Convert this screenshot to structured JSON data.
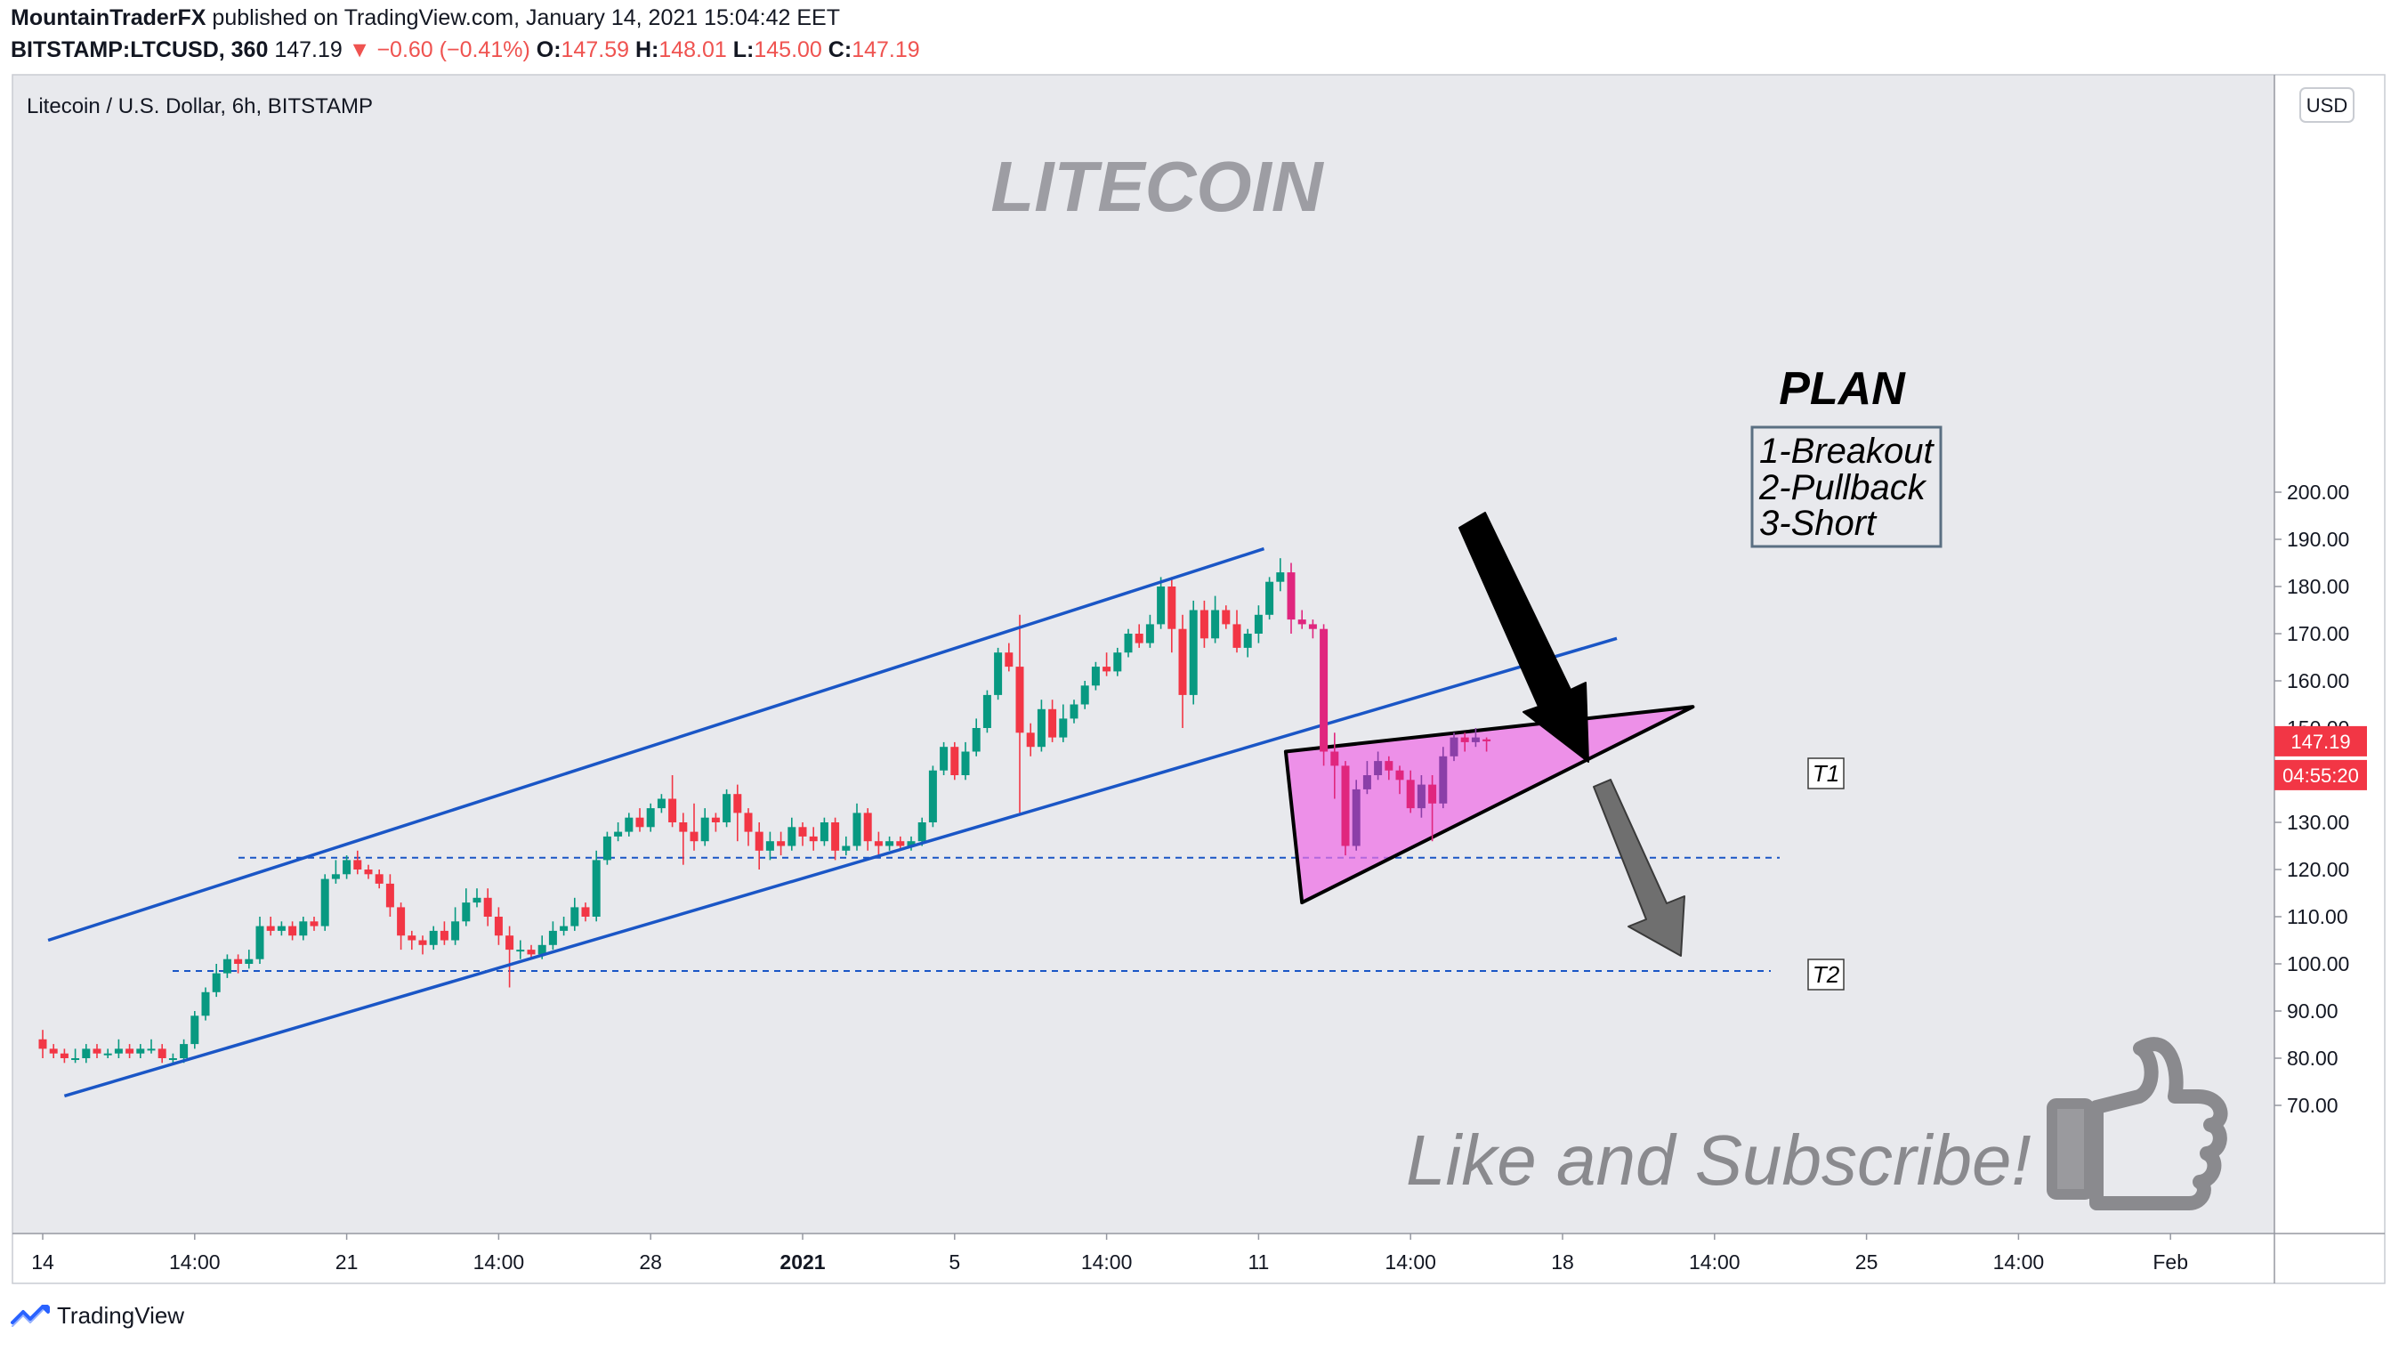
{
  "header": {
    "author": "MountainTraderFX",
    "published": "published on TradingView.com, January 14, 2021 15:04:42 EET",
    "symbol": "BITSTAMP:LTCUSD, 360",
    "last": "147.19",
    "change": "−0.60 (−0.41%)",
    "o_label": "O:",
    "o": "147.59",
    "h_label": "H:",
    "h": "148.01",
    "l_label": "L:",
    "l": "145.00",
    "c_label": "C:",
    "c": "147.19"
  },
  "chart_title": "Litecoin / U.S. Dollar, 6h, BITSTAMP",
  "currency_button": "USD",
  "price_label": "147.19",
  "countdown_label": "04:55:20",
  "colors": {
    "up": "#089981",
    "down": "#f23645",
    "channel": "#1a56c6",
    "triangle_fill": "#ee6ee6",
    "grid_bg": "#e8e9ed"
  },
  "annotations": {
    "watermark": "LITECOIN",
    "plan_title": "PLAN",
    "plan_steps": [
      "1-Breakout",
      "2-Pullback",
      "3-Short"
    ],
    "t1": "T1",
    "t2": "T2",
    "cta": "Like and Subscribe!",
    "cta_icon": "thumbs-up-icon"
  },
  "footer": {
    "brand": "TradingView",
    "logo_icon": "tradingview-logo-icon"
  },
  "chart_data": {
    "type": "candlestick",
    "title": "Litecoin / U.S. Dollar, 6h, BITSTAMP",
    "xlabel": "",
    "ylabel": "USD",
    "ylim": [
      64,
      206
    ],
    "y_ticks": [
      "200.00",
      "190.00",
      "180.00",
      "170.00",
      "160.00",
      "150.00",
      "140.00",
      "130.00",
      "120.00",
      "110.00",
      "100.00",
      "90.00",
      "80.00",
      "70.00"
    ],
    "x_ticks": [
      "14",
      "14:00",
      "21",
      "14:00",
      "28",
      "2021",
      "5",
      "14:00",
      "11",
      "14:00",
      "18",
      "14:00",
      "25",
      "14:00",
      "Feb"
    ],
    "x_tick_index": [
      0,
      14,
      28,
      42,
      56,
      70,
      84,
      98,
      112,
      126,
      140,
      154,
      168,
      182,
      196
    ],
    "horizontal_levels": [
      {
        "label": "T1",
        "value": 122.5
      },
      {
        "label": "T2",
        "value": 98.5
      }
    ],
    "channel_lines": [
      {
        "from": [
          0.5,
          105
        ],
        "to": [
          112.5,
          188
        ]
      },
      {
        "from": [
          2,
          72
        ],
        "to": [
          145,
          169
        ]
      }
    ],
    "candles": [
      [
        84,
        82,
        86,
        80
      ],
      [
        82,
        81,
        83,
        80
      ],
      [
        81,
        80,
        82,
        79
      ],
      [
        80,
        80,
        82,
        79
      ],
      [
        80,
        82,
        83,
        79
      ],
      [
        82,
        81,
        83,
        80
      ],
      [
        81,
        81,
        82,
        80
      ],
      [
        81,
        82,
        84,
        80
      ],
      [
        82,
        81,
        83,
        80
      ],
      [
        81,
        82,
        83,
        80
      ],
      [
        82,
        82,
        84,
        81
      ],
      [
        82,
        80,
        83,
        79
      ],
      [
        80,
        80,
        81,
        79
      ],
      [
        80,
        83,
        84,
        79
      ],
      [
        83,
        89,
        90,
        82
      ],
      [
        89,
        94,
        95,
        88
      ],
      [
        94,
        98,
        100,
        93
      ],
      [
        98,
        101,
        102,
        97
      ],
      [
        101,
        100,
        102,
        98
      ],
      [
        100,
        101,
        103,
        99
      ],
      [
        101,
        108,
        110,
        100
      ],
      [
        108,
        107,
        110,
        106
      ],
      [
        107,
        108,
        109,
        106
      ],
      [
        108,
        106,
        109,
        105
      ],
      [
        106,
        109,
        110,
        105
      ],
      [
        109,
        108,
        110,
        107
      ],
      [
        108,
        118,
        119,
        107
      ],
      [
        118,
        119,
        122,
        117
      ],
      [
        119,
        122,
        123,
        118
      ],
      [
        122,
        120,
        124,
        119
      ],
      [
        120,
        119,
        121,
        118
      ],
      [
        119,
        117,
        120,
        116
      ],
      [
        117,
        112,
        119,
        110
      ],
      [
        112,
        106,
        113,
        103
      ],
      [
        106,
        105,
        107,
        103
      ],
      [
        105,
        104,
        106,
        102
      ],
      [
        104,
        107,
        108,
        103
      ],
      [
        107,
        105,
        109,
        104
      ],
      [
        105,
        109,
        112,
        104
      ],
      [
        109,
        113,
        116,
        108
      ],
      [
        113,
        114,
        116,
        112
      ],
      [
        114,
        110,
        116,
        108
      ],
      [
        110,
        106,
        112,
        104
      ],
      [
        106,
        103,
        108,
        95
      ],
      [
        103,
        103,
        105,
        101
      ],
      [
        103,
        102,
        104,
        101
      ],
      [
        102,
        104,
        106,
        101
      ],
      [
        104,
        107,
        109,
        103
      ],
      [
        107,
        108,
        110,
        106
      ],
      [
        108,
        112,
        114,
        107
      ],
      [
        112,
        110,
        113,
        109
      ],
      [
        110,
        122,
        124,
        109
      ],
      [
        122,
        127,
        128,
        121
      ],
      [
        127,
        128,
        130,
        126
      ],
      [
        128,
        131,
        132,
        127
      ],
      [
        131,
        129,
        133,
        128
      ],
      [
        129,
        133,
        134,
        128
      ],
      [
        133,
        135,
        136,
        132
      ],
      [
        135,
        130,
        140,
        129
      ],
      [
        130,
        128,
        132,
        121
      ],
      [
        128,
        126,
        134,
        124
      ],
      [
        126,
        131,
        133,
        125
      ],
      [
        131,
        130,
        132,
        128
      ],
      [
        130,
        136,
        137,
        129
      ],
      [
        136,
        132,
        138,
        126
      ],
      [
        132,
        128,
        133,
        125
      ],
      [
        128,
        124,
        130,
        120
      ],
      [
        124,
        126,
        128,
        122
      ],
      [
        126,
        125,
        128,
        123
      ],
      [
        125,
        129,
        131,
        124
      ],
      [
        129,
        127,
        130,
        125
      ],
      [
        127,
        126,
        129,
        124
      ],
      [
        126,
        130,
        131,
        125
      ],
      [
        130,
        124,
        131,
        122
      ],
      [
        124,
        125,
        127,
        123
      ],
      [
        125,
        132,
        134,
        124
      ],
      [
        132,
        126,
        133,
        124
      ],
      [
        126,
        125,
        128,
        123
      ],
      [
        125,
        126,
        127,
        124
      ],
      [
        126,
        125,
        127,
        124
      ],
      [
        125,
        126,
        127,
        124
      ],
      [
        126,
        130,
        131,
        125
      ],
      [
        130,
        141,
        142,
        129
      ],
      [
        141,
        146,
        147,
        140
      ],
      [
        146,
        140,
        147,
        139
      ],
      [
        140,
        145,
        147,
        139
      ],
      [
        145,
        150,
        152,
        144
      ],
      [
        150,
        157,
        158,
        149
      ],
      [
        157,
        166,
        167,
        156
      ],
      [
        166,
        163,
        168,
        162
      ],
      [
        163,
        149,
        174,
        132
      ],
      [
        149,
        146,
        151,
        144
      ],
      [
        146,
        154,
        156,
        145
      ],
      [
        154,
        148,
        156,
        147
      ],
      [
        148,
        152,
        155,
        147
      ],
      [
        152,
        155,
        156,
        151
      ],
      [
        155,
        159,
        160,
        154
      ],
      [
        159,
        163,
        164,
        158
      ],
      [
        163,
        162,
        166,
        161
      ],
      [
        162,
        166,
        167,
        161
      ],
      [
        166,
        170,
        171,
        165
      ],
      [
        170,
        168,
        172,
        167
      ],
      [
        168,
        172,
        174,
        167
      ],
      [
        172,
        180,
        182,
        171
      ],
      [
        180,
        171,
        182,
        166
      ],
      [
        171,
        157,
        174,
        150
      ],
      [
        157,
        175,
        177,
        155
      ],
      [
        175,
        169,
        177,
        167
      ],
      [
        169,
        175,
        178,
        168
      ],
      [
        175,
        172,
        176,
        171
      ],
      [
        172,
        167,
        175,
        166
      ],
      [
        167,
        170,
        171,
        165
      ],
      [
        170,
        174,
        176,
        168
      ],
      [
        174,
        181,
        182,
        173
      ],
      [
        181,
        183,
        186,
        179
      ],
      [
        183,
        173,
        185,
        170
      ],
      [
        173,
        172,
        175,
        171
      ],
      [
        172,
        171,
        173,
        169
      ],
      [
        171,
        145,
        172,
        142
      ],
      [
        145,
        142,
        149,
        135
      ],
      [
        142,
        125,
        143,
        123
      ],
      [
        125,
        137,
        139,
        124
      ],
      [
        137,
        140,
        143,
        136
      ],
      [
        140,
        143,
        145,
        139
      ],
      [
        143,
        141,
        144,
        139
      ],
      [
        141,
        139,
        142,
        136
      ],
      [
        139,
        133,
        141,
        132
      ],
      [
        133,
        138,
        140,
        131
      ],
      [
        138,
        134,
        140,
        126
      ],
      [
        134,
        144,
        146,
        133
      ],
      [
        144,
        148,
        149,
        143
      ],
      [
        148,
        147,
        149,
        145
      ],
      [
        147,
        148,
        150,
        146
      ],
      [
        147.59,
        147.19,
        148.01,
        145
      ]
    ]
  }
}
